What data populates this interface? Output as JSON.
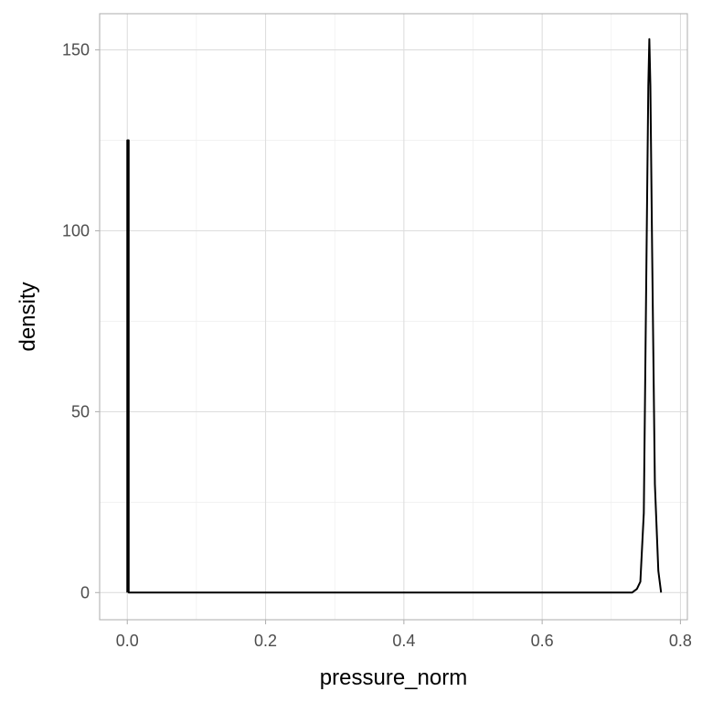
{
  "chart_data": {
    "type": "line",
    "title": "",
    "xlabel": "pressure_norm",
    "ylabel": "density",
    "xlim": [
      -0.04,
      0.81
    ],
    "ylim": [
      -7.5,
      160
    ],
    "x_ticks": [
      0.0,
      0.2,
      0.4,
      0.6,
      0.8
    ],
    "x_tick_labels": [
      "0.0",
      "0.2",
      "0.4",
      "0.6",
      "0.8"
    ],
    "y_ticks": [
      0,
      50,
      100,
      150
    ],
    "y_tick_labels": [
      "0",
      "50",
      "100",
      "150"
    ],
    "x_minor_ticks": [
      0.1,
      0.3,
      0.5,
      0.7
    ],
    "y_minor_ticks": [
      25,
      75,
      125
    ],
    "grid": true,
    "legend": "none",
    "colors": {
      "line": "#000000",
      "grid": "#ebebeb",
      "panel_border": "#b3b3b3",
      "tick_text": "#4d4d4d"
    },
    "series": [
      {
        "x": [
          0.0,
          0.0,
          0.002,
          0.002,
          0.1,
          0.2,
          0.3,
          0.4,
          0.5,
          0.6,
          0.7,
          0.73,
          0.737,
          0.742,
          0.747,
          0.751,
          0.7535,
          0.755,
          0.7565,
          0.759,
          0.763,
          0.768,
          0.772
        ],
        "y": [
          0,
          125,
          125,
          0,
          0,
          0,
          0,
          0,
          0,
          0,
          0,
          0,
          1,
          3,
          22,
          95,
          140,
          153,
          140,
          95,
          30,
          6,
          0
        ]
      }
    ]
  }
}
